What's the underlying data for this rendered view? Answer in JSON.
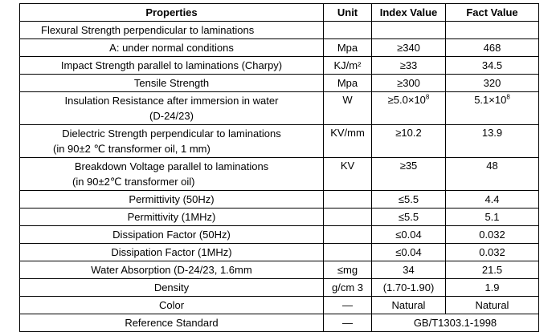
{
  "table": {
    "headers": [
      "Properties",
      "Unit",
      "Index Value",
      "Fact Value"
    ],
    "rows": [
      {
        "property": "Flexural Strength perpendicular to laminations",
        "unit": "",
        "index": "",
        "fact": ""
      },
      {
        "property": "A: under normal conditions",
        "unit": "Mpa",
        "index": "≥340",
        "fact": "468"
      },
      {
        "property": "Impact Strength parallel to laminations (Charpy)",
        "unit": "KJ/m²",
        "index": "≥33",
        "fact": "34.5"
      },
      {
        "property": "Tensile Strength",
        "unit": "Mpa",
        "index": "≥300",
        "fact": "320"
      },
      {
        "property": "Insulation Resistance after immersion in water",
        "property_line2": "(D-24/23)",
        "unit": "W",
        "index": "≥5.0×10",
        "index_exp": "8",
        "fact": "5.1×10",
        "fact_exp": "8"
      },
      {
        "property": "Dielectric Strength perpendicular to laminations",
        "property_line2": "(in 90±2 ℃ transformer oil, 1 mm)",
        "unit": "KV/mm",
        "index": "≥10.2",
        "fact": "13.9"
      },
      {
        "property": "Breakdown Voltage parallel to laminations",
        "property_line2": "(in 90±2℃ transformer oil)",
        "unit": "KV",
        "index": "≥35",
        "fact": "48"
      },
      {
        "property": "Permittivity (50Hz)",
        "unit": "",
        "index": "≤5.5",
        "fact": "4.4"
      },
      {
        "property": "Permittivity (1MHz)",
        "unit": "",
        "index": "≤5.5",
        "fact": "5.1"
      },
      {
        "property": "Dissipation Factor (50Hz)",
        "unit": "",
        "index": "≤0.04",
        "fact": "0.032"
      },
      {
        "property": "Dissipation Factor (1MHz)",
        "unit": "",
        "index": "≤0.04",
        "fact": "0.032"
      },
      {
        "property": "Water Absorption (D-24/23, 1.6mm",
        "unit": "≤mg",
        "index": "34",
        "fact": "21.5"
      },
      {
        "property": "Density",
        "unit": "g/cm 3",
        "index": "(1.70-1.90)",
        "fact": "1.9"
      },
      {
        "property": "Color",
        "unit": "—",
        "index": "Natural",
        "fact": "Natural"
      },
      {
        "property": "Reference Standard",
        "unit": "—",
        "value": "GB/T1303.1-1998"
      }
    ]
  }
}
